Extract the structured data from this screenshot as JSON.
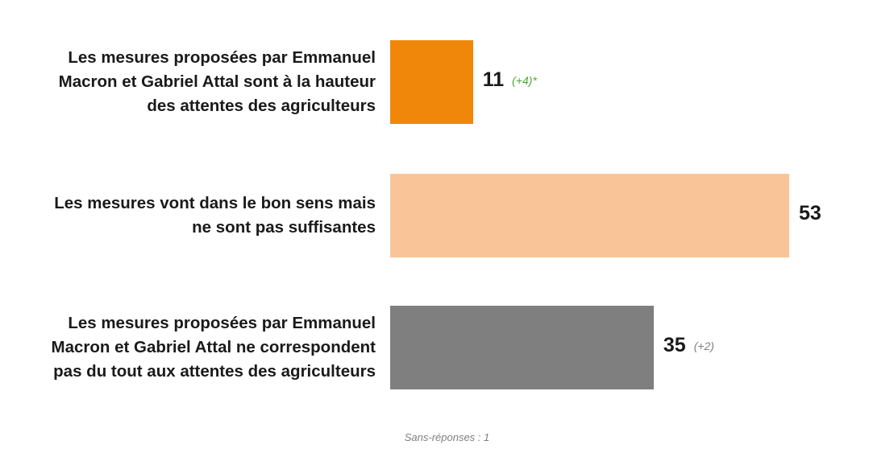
{
  "chart_data": {
    "type": "bar",
    "orientation": "horizontal",
    "categories": [
      "Les mesures proposées par Emmanuel Macron et Gabriel Attal sont à la hauteur des attentes des agriculteurs",
      "Les mesures vont dans le bon sens mais ne sont pas suffisantes",
      "Les mesures proposées par Emmanuel Macron et Gabriel Attal ne correspondent pas du tout aux attentes des agriculteurs"
    ],
    "category_lines": [
      [
        "Les mesures proposées par Emmanuel",
        "Macron et Gabriel Attal sont à la hauteur",
        "des attentes des agriculteurs"
      ],
      [
        "Les mesures vont dans le bon sens mais",
        "ne sont pas suffisantes"
      ],
      [
        "Les mesures proposées par Emmanuel",
        "Macron et Gabriel Attal ne correspondent",
        "pas du tout aux attentes des agriculteurs"
      ]
    ],
    "values": [
      11,
      53,
      35
    ],
    "value_labels": [
      "11",
      "53",
      "35"
    ],
    "changes": [
      "(+4)*",
      "",
      "(+2)"
    ],
    "colors": [
      "#f0870a",
      "#f9c598",
      "#7f7f7f"
    ],
    "change_colors": [
      "#4ea72e",
      "#7f7f7f",
      "#7f7f7f"
    ],
    "xlim": [
      0,
      53
    ],
    "footnote": "Sans-réponses : 1"
  }
}
